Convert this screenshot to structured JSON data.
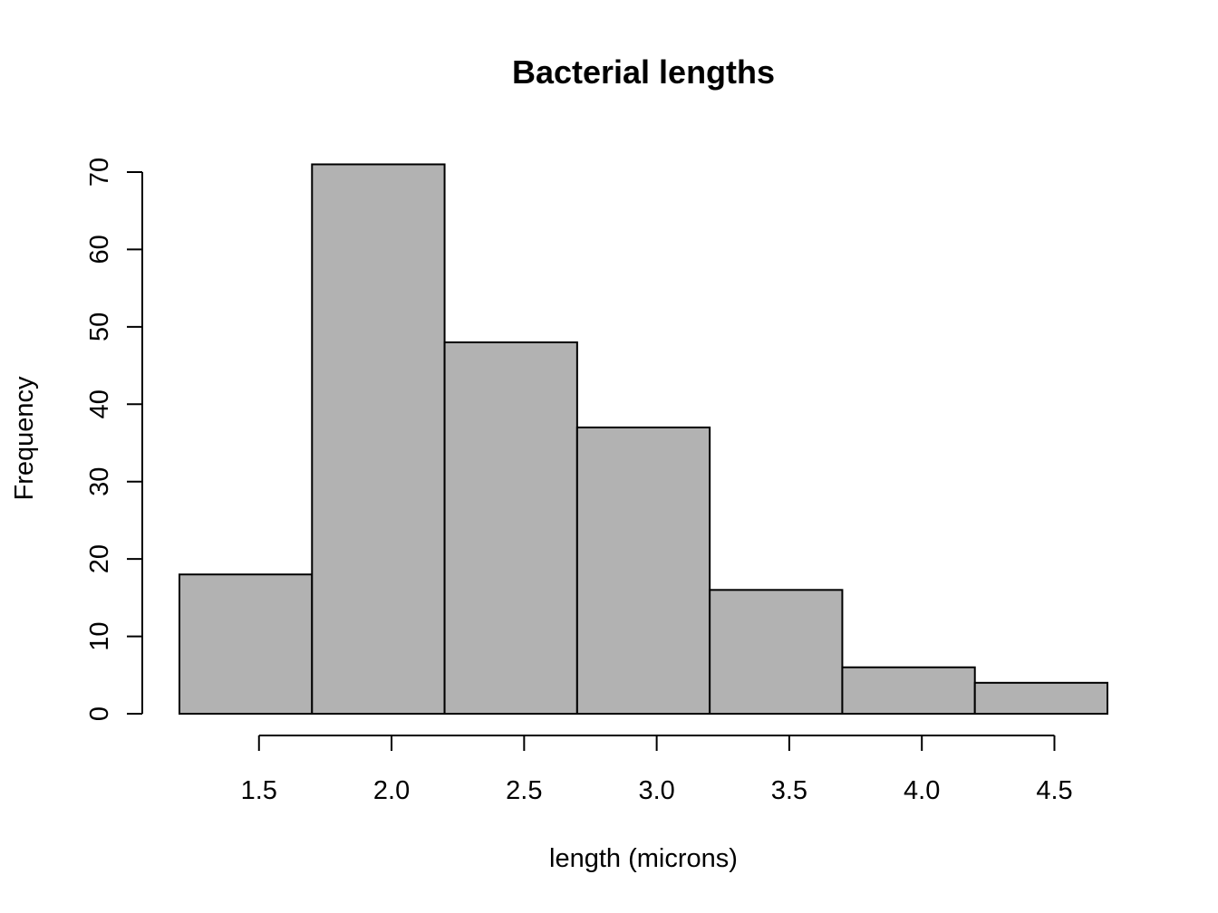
{
  "chart_data": {
    "type": "bar",
    "title": "Bacterial lengths",
    "xlabel": "length (microns)",
    "ylabel": "Frequency",
    "bins": [
      {
        "start": 1.2,
        "end": 1.7,
        "count": 18
      },
      {
        "start": 1.7,
        "end": 2.2,
        "count": 71
      },
      {
        "start": 2.2,
        "end": 2.7,
        "count": 48
      },
      {
        "start": 2.7,
        "end": 3.2,
        "count": 37
      },
      {
        "start": 3.2,
        "end": 3.7,
        "count": 16
      },
      {
        "start": 3.7,
        "end": 4.2,
        "count": 6
      },
      {
        "start": 4.2,
        "end": 4.7,
        "count": 4
      }
    ],
    "xticks": [
      1.5,
      2.0,
      2.5,
      3.0,
      3.5,
      4.0,
      4.5
    ],
    "xtick_labels": [
      "1.5",
      "2.0",
      "2.5",
      "3.0",
      "3.5",
      "4.0",
      "4.5"
    ],
    "yticks": [
      0,
      10,
      20,
      30,
      40,
      50,
      60,
      70
    ],
    "ytick_labels": [
      "0",
      "10",
      "20",
      "30",
      "40",
      "50",
      "60",
      "70"
    ],
    "xlim": [
      1.2,
      4.7
    ],
    "ylim": [
      0,
      70
    ],
    "bar_color": "#b2b2b2",
    "grid": false,
    "legend": "none"
  }
}
